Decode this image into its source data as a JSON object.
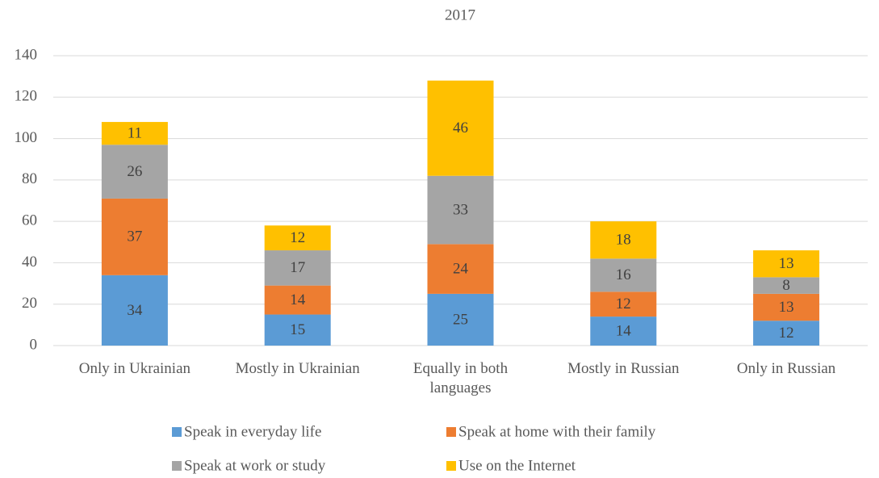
{
  "chart_data": {
    "type": "bar",
    "stacked": true,
    "title": "2017",
    "categories": [
      "Only in Ukrainian",
      "Mostly in Ukrainian",
      "Equally in both languages",
      "Mostly in Russian",
      "Only in Russian"
    ],
    "series": [
      {
        "name": "Speak in everyday life",
        "color": "#5b9bd5",
        "values": [
          34,
          15,
          25,
          14,
          12
        ]
      },
      {
        "name": "Speak at home with their family",
        "color": "#ed7d31",
        "values": [
          37,
          14,
          24,
          12,
          13
        ]
      },
      {
        "name": "Speak at work or study",
        "color": "#a5a5a5",
        "values": [
          26,
          17,
          33,
          16,
          8
        ]
      },
      {
        "name": "Use on the Internet",
        "color": "#ffc000",
        "values": [
          11,
          12,
          46,
          18,
          13
        ]
      }
    ],
    "ylim": [
      0,
      140
    ],
    "yticks": [
      0,
      20,
      40,
      60,
      80,
      100,
      120,
      140
    ],
    "grid": true,
    "legend": "bottom"
  }
}
